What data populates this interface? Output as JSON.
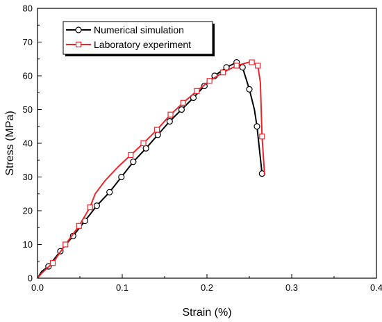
{
  "chart_data": {
    "type": "line",
    "xlabel": "Strain (%)",
    "ylabel": "Stress (MPa)",
    "xlim": [
      0,
      0.4
    ],
    "ylim": [
      0,
      80
    ],
    "xticks": [
      "0.0",
      "0.1",
      "0.2",
      "0.3",
      "0.4"
    ],
    "yticks": [
      "0",
      "10",
      "20",
      "30",
      "40",
      "50",
      "60",
      "70",
      "80"
    ],
    "grid": false,
    "legend_position": "top-left",
    "series": [
      {
        "name": "Numerical simulation",
        "color": "#000000",
        "marker": "circle",
        "x": [
          0.0,
          0.005,
          0.013,
          0.027,
          0.042,
          0.056,
          0.07,
          0.085,
          0.099,
          0.113,
          0.128,
          0.142,
          0.156,
          0.17,
          0.184,
          0.197,
          0.209,
          0.223,
          0.235,
          0.242,
          0.25,
          0.256,
          0.259,
          0.265
        ],
        "y": [
          0.0,
          2.0,
          3.5,
          8.0,
          12.5,
          17.0,
          21.5,
          25.5,
          30.0,
          34.5,
          38.5,
          42.5,
          46.5,
          50.0,
          53.5,
          57.0,
          60.0,
          62.5,
          64.0,
          62.5,
          56.0,
          50.0,
          45.0,
          31.0
        ],
        "marker_indices": [
          2,
          3,
          4,
          5,
          6,
          7,
          8,
          9,
          10,
          11,
          12,
          13,
          14,
          15,
          16,
          17,
          18,
          19,
          20,
          22,
          23
        ]
      },
      {
        "name": "Laboratory experiment",
        "color": "#e8272d",
        "marker": "square",
        "x": [
          0.0,
          0.005,
          0.018,
          0.033,
          0.049,
          0.062,
          0.068,
          0.08,
          0.095,
          0.11,
          0.125,
          0.141,
          0.157,
          0.172,
          0.188,
          0.203,
          0.219,
          0.235,
          0.242,
          0.249,
          0.253,
          0.26,
          0.263,
          0.265,
          0.268
        ],
        "y": [
          0.0,
          1.5,
          4.5,
          10.0,
          15.5,
          21.0,
          25.0,
          29.0,
          33.0,
          36.5,
          40.0,
          44.0,
          48.5,
          52.0,
          55.5,
          58.5,
          61.0,
          63.0,
          63.5,
          64.0,
          64.0,
          63.0,
          58.0,
          42.0,
          30.5
        ],
        "marker_indices": [
          2,
          3,
          4,
          5,
          9,
          10,
          11,
          12,
          13,
          14,
          15,
          16,
          17,
          20,
          21,
          23
        ]
      }
    ]
  }
}
